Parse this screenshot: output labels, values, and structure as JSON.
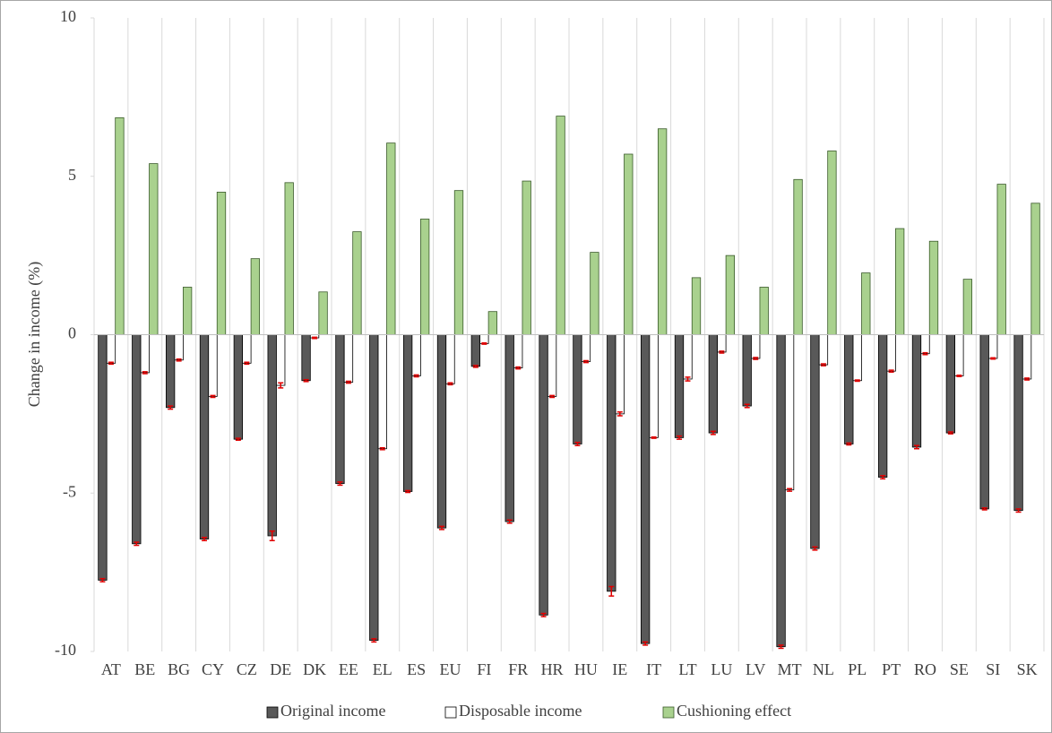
{
  "chart_data": {
    "type": "bar",
    "y_label": "Change in income (%)",
    "categories": [
      "AT",
      "BE",
      "BG",
      "CY",
      "CZ",
      "DE",
      "DK",
      "EE",
      "EL",
      "ES",
      "EU",
      "FI",
      "FR",
      "HR",
      "HU",
      "IE",
      "IT",
      "LT",
      "LU",
      "LV",
      "MT",
      "NL",
      "PL",
      "PT",
      "RO",
      "SE",
      "SI",
      "SK"
    ],
    "series": [
      {
        "name": "Original income",
        "color": "#595959",
        "values": [
          -7.75,
          -6.6,
          -2.3,
          -6.45,
          -3.3,
          -6.35,
          -1.45,
          -4.7,
          -9.65,
          -4.95,
          -6.1,
          -1.0,
          -5.9,
          -8.85,
          -3.45,
          -8.1,
          -9.75,
          -3.25,
          -3.1,
          -2.25,
          -9.85,
          -6.75,
          -3.45,
          -4.5,
          -3.55,
          -3.1,
          -5.5,
          -5.55
        ],
        "errors": [
          0.05,
          0.05,
          0.05,
          0.05,
          0.03,
          0.15,
          0.03,
          0.05,
          0.05,
          0.03,
          0.05,
          0.03,
          0.05,
          0.05,
          0.05,
          0.15,
          0.05,
          0.05,
          0.05,
          0.05,
          0.05,
          0.05,
          0.03,
          0.05,
          0.05,
          0.03,
          0.03,
          0.05
        ]
      },
      {
        "name": "Disposable income",
        "color": "#ffffff",
        "values": [
          -0.9,
          -1.2,
          -0.8,
          -1.95,
          -0.9,
          -1.6,
          -0.1,
          -1.5,
          -3.6,
          -1.3,
          -1.55,
          -0.28,
          -1.05,
          -1.95,
          -0.85,
          -2.5,
          -3.25,
          -1.4,
          -0.55,
          -0.75,
          -4.9,
          -0.95,
          -1.45,
          -1.15,
          -0.6,
          -1.3,
          -0.75,
          -1.4
        ],
        "errors": [
          0.03,
          0.03,
          0.03,
          0.03,
          0.03,
          0.08,
          0.02,
          0.03,
          0.03,
          0.03,
          0.03,
          0.02,
          0.03,
          0.03,
          0.03,
          0.06,
          0.02,
          0.06,
          0.03,
          0.03,
          0.04,
          0.03,
          0.02,
          0.03,
          0.03,
          0.02,
          0.02,
          0.03
        ]
      },
      {
        "name": "Cushioning effect",
        "color": "#a9d18e",
        "values": [
          6.85,
          5.4,
          1.5,
          4.5,
          2.4,
          4.8,
          1.35,
          3.25,
          6.05,
          3.65,
          4.55,
          0.73,
          4.85,
          6.9,
          2.6,
          5.7,
          6.5,
          1.8,
          2.5,
          1.5,
          4.9,
          5.8,
          1.95,
          3.35,
          2.95,
          1.75,
          4.75,
          4.15
        ]
      }
    ],
    "ylim": [
      -10,
      10
    ],
    "yticks": [
      -10,
      -5,
      0,
      5,
      10
    ],
    "grid": true,
    "legend": "bottom"
  }
}
